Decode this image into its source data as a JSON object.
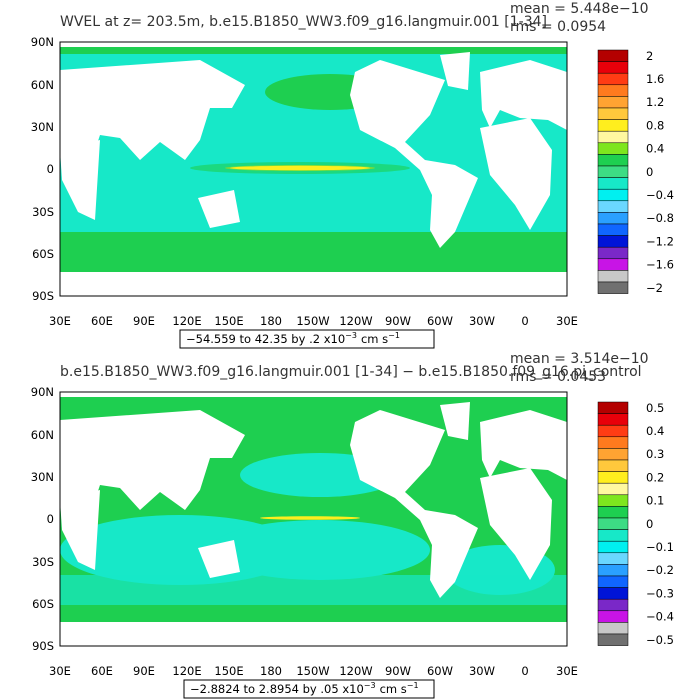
{
  "panels": [
    {
      "title": "WVEL at z= 203.5m, b.e15.B1850_WW3.f09_g16.langmuir.001 [1-34]",
      "mean_text": "mean = 5.448e−10",
      "rms_text": "rms = 0.0954",
      "range_text": "−54.559 to 42.35 by .2 x10",
      "range_exp": "−3",
      "range_units": "cm s",
      "range_units_exp": "−1",
      "colorbar": {
        "labels": [
          "2",
          "1.6",
          "1.2",
          "0.8",
          "0.4",
          "0",
          "−0.4",
          "−0.8",
          "−1.2",
          "−1.6",
          "−2"
        ],
        "colors": [
          "#b40000",
          "#e8000a",
          "#ff3c14",
          "#ff7a1e",
          "#ffa332",
          "#ffc83c",
          "#ffee1e",
          "#fff8a0",
          "#7ee61e",
          "#1ecf50",
          "#3ddc84",
          "#17e8c8",
          "#00f0f0",
          "#6ad7ff",
          "#2aa0ff",
          "#1066ff",
          "#0014d8",
          "#7a28c8",
          "#c814e6",
          "#c8c8c8",
          "#707070"
        ]
      }
    },
    {
      "title": "b.e15.B1850_WW3.f09_g16.langmuir.001 [1-34] − b.e15.B1850.f09_g16.pi_control",
      "mean_text": "mean = 3.514e−10",
      "rms_text": "rms = 0.0453",
      "range_text": "−2.8824 to 2.8954 by .05 x10",
      "range_exp": "−3",
      "range_units": "cm s",
      "range_units_exp": "−1",
      "colorbar": {
        "labels": [
          "0.5",
          "0.4",
          "0.3",
          "0.2",
          "0.1",
          "0",
          "−0.1",
          "−0.2",
          "−0.3",
          "−0.4",
          "−0.5"
        ],
        "colors": [
          "#b40000",
          "#e8000a",
          "#ff3c14",
          "#ff7a1e",
          "#ffa332",
          "#ffc83c",
          "#ffee1e",
          "#fff8a0",
          "#7ee61e",
          "#1ecf50",
          "#3ddc84",
          "#17e8c8",
          "#00f0f0",
          "#6ad7ff",
          "#2aa0ff",
          "#1066ff",
          "#0014d8",
          "#7a28c8",
          "#c814e6",
          "#c8c8c8",
          "#707070"
        ]
      }
    }
  ],
  "axes": {
    "lat_labels": [
      "90N",
      "60N",
      "30N",
      "0",
      "30S",
      "60S",
      "90S"
    ],
    "lon_labels": [
      "30E",
      "60E",
      "90E",
      "120E",
      "150E",
      "180",
      "150W",
      "120W",
      "90W",
      "60W",
      "30W",
      "0",
      "30E"
    ]
  },
  "colors": {
    "ocean_main": "#17e8c8",
    "ocean_alt": "#1ecf50",
    "land": "#ffffff"
  }
}
